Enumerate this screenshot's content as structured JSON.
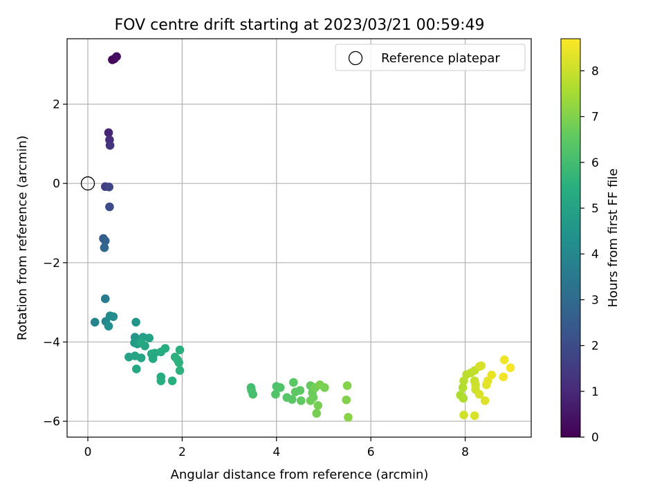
{
  "chart_data": {
    "type": "scatter",
    "title": "FOV centre drift starting at 2023/03/21 00:59:49",
    "xlabel": "Angular distance from reference (arcmin)",
    "ylabel": "Rotation from reference (arcmin)",
    "xlim": [
      -0.44,
      9.4
    ],
    "ylim": [
      -6.4,
      3.65
    ],
    "xticks": [
      0,
      2,
      4,
      6,
      8
    ],
    "xtick_labels": [
      "0",
      "2",
      "4",
      "6",
      "8"
    ],
    "yticks": [
      -6,
      -4,
      -2,
      0,
      2
    ],
    "ytick_labels": [
      "−6",
      "−4",
      "−2",
      "0",
      "2"
    ],
    "grid": true,
    "legend": {
      "placement": "top-right",
      "label": "Reference platepar"
    },
    "reference_point": {
      "x": 0,
      "y": 0
    },
    "colorbar": {
      "label": "Hours from first FF file",
      "range": [
        0,
        8.7
      ],
      "colormap": "viridis",
      "ticks": [
        0,
        1,
        2,
        3,
        4,
        5,
        6,
        7,
        8
      ],
      "tick_labels": [
        "0",
        "1",
        "2",
        "3",
        "4",
        "5",
        "6",
        "7",
        "8"
      ]
    },
    "points": [
      {
        "x": 0.52,
        "y": 3.12,
        "c": 0.05
      },
      {
        "x": 0.56,
        "y": 3.14,
        "c": 0.2
      },
      {
        "x": 0.61,
        "y": 3.2,
        "c": 0.35
      },
      {
        "x": 0.44,
        "y": 1.28,
        "c": 0.9
      },
      {
        "x": 0.46,
        "y": 1.1,
        "c": 1.1
      },
      {
        "x": 0.47,
        "y": 0.96,
        "c": 1.3
      },
      {
        "x": 0.37,
        "y": -0.08,
        "c": 1.6
      },
      {
        "x": 0.45,
        "y": -0.09,
        "c": 1.8
      },
      {
        "x": 0.46,
        "y": -0.59,
        "c": 2.0
      },
      {
        "x": 0.33,
        "y": -1.39,
        "c": 2.5
      },
      {
        "x": 0.37,
        "y": -1.45,
        "c": 2.7
      },
      {
        "x": 0.35,
        "y": -1.62,
        "c": 2.9
      },
      {
        "x": 0.37,
        "y": -2.91,
        "c": 3.6
      },
      {
        "x": 0.15,
        "y": -3.5,
        "c": 3.9
      },
      {
        "x": 0.38,
        "y": -3.48,
        "c": 4.0
      },
      {
        "x": 0.47,
        "y": -3.34,
        "c": 4.1
      },
      {
        "x": 0.54,
        "y": -3.36,
        "c": 4.2
      },
      {
        "x": 0.44,
        "y": -3.6,
        "c": 4.3
      },
      {
        "x": 1.02,
        "y": -3.5,
        "c": 4.5
      },
      {
        "x": 1.0,
        "y": -3.88,
        "c": 4.6
      },
      {
        "x": 0.99,
        "y": -4.02,
        "c": 4.7
      },
      {
        "x": 1.05,
        "y": -4.05,
        "c": 4.8
      },
      {
        "x": 1.17,
        "y": -3.88,
        "c": 4.9
      },
      {
        "x": 1.3,
        "y": -3.9,
        "c": 5.0
      },
      {
        "x": 1.21,
        "y": -4.1,
        "c": 5.1
      },
      {
        "x": 1.13,
        "y": -4.0,
        "c": 5.2
      },
      {
        "x": 1.35,
        "y": -4.3,
        "c": 5.25
      },
      {
        "x": 1.42,
        "y": -4.28,
        "c": 5.3
      },
      {
        "x": 1.55,
        "y": -4.25,
        "c": 5.35
      },
      {
        "x": 1.64,
        "y": -4.16,
        "c": 5.4
      },
      {
        "x": 1.95,
        "y": -4.2,
        "c": 5.45
      },
      {
        "x": 1.85,
        "y": -4.38,
        "c": 5.5
      },
      {
        "x": 1.9,
        "y": -4.45,
        "c": 5.5
      },
      {
        "x": 1.93,
        "y": -4.52,
        "c": 5.55
      },
      {
        "x": 1.95,
        "y": -4.72,
        "c": 5.55
      },
      {
        "x": 1.55,
        "y": -4.88,
        "c": 5.35
      },
      {
        "x": 1.55,
        "y": -4.98,
        "c": 5.4
      },
      {
        "x": 1.79,
        "y": -4.98,
        "c": 5.45
      },
      {
        "x": 0.87,
        "y": -4.38,
        "c": 5.0
      },
      {
        "x": 1.0,
        "y": -4.35,
        "c": 5.05
      },
      {
        "x": 1.13,
        "y": -4.4,
        "c": 5.1
      },
      {
        "x": 1.38,
        "y": -4.42,
        "c": 5.2
      },
      {
        "x": 1.03,
        "y": -4.68,
        "c": 5.15
      },
      {
        "x": 3.46,
        "y": -5.15,
        "c": 6.0
      },
      {
        "x": 3.47,
        "y": -5.22,
        "c": 6.05
      },
      {
        "x": 3.5,
        "y": -5.32,
        "c": 6.1
      },
      {
        "x": 4.0,
        "y": -5.12,
        "c": 6.2
      },
      {
        "x": 4.08,
        "y": -5.15,
        "c": 6.25
      },
      {
        "x": 3.98,
        "y": -5.32,
        "c": 6.3
      },
      {
        "x": 4.22,
        "y": -5.4,
        "c": 6.35
      },
      {
        "x": 4.33,
        "y": -5.45,
        "c": 6.4
      },
      {
        "x": 4.36,
        "y": -5.02,
        "c": 6.45
      },
      {
        "x": 4.4,
        "y": -5.26,
        "c": 6.5
      },
      {
        "x": 4.5,
        "y": -5.22,
        "c": 6.5
      },
      {
        "x": 4.52,
        "y": -5.48,
        "c": 6.55
      },
      {
        "x": 4.72,
        "y": -5.1,
        "c": 6.6
      },
      {
        "x": 4.76,
        "y": -5.28,
        "c": 6.65
      },
      {
        "x": 4.78,
        "y": -5.4,
        "c": 6.7
      },
      {
        "x": 4.72,
        "y": -5.48,
        "c": 6.75
      },
      {
        "x": 4.82,
        "y": -5.15,
        "c": 6.8
      },
      {
        "x": 4.88,
        "y": -5.6,
        "c": 6.85
      },
      {
        "x": 4.85,
        "y": -5.8,
        "c": 6.85
      },
      {
        "x": 4.92,
        "y": -5.08,
        "c": 6.9
      },
      {
        "x": 5.02,
        "y": -5.15,
        "c": 6.9
      },
      {
        "x": 5.48,
        "y": -5.46,
        "c": 7.0
      },
      {
        "x": 5.5,
        "y": -5.1,
        "c": 7.05
      },
      {
        "x": 5.52,
        "y": -5.9,
        "c": 7.1
      },
      {
        "x": 7.9,
        "y": -5.34,
        "c": 7.6
      },
      {
        "x": 7.96,
        "y": -5.42,
        "c": 7.65
      },
      {
        "x": 7.95,
        "y": -5.15,
        "c": 7.7
      },
      {
        "x": 7.97,
        "y": -4.98,
        "c": 7.75
      },
      {
        "x": 8.03,
        "y": -4.82,
        "c": 7.8
      },
      {
        "x": 8.12,
        "y": -4.78,
        "c": 7.85
      },
      {
        "x": 8.2,
        "y": -4.72,
        "c": 7.9
      },
      {
        "x": 8.2,
        "y": -4.98,
        "c": 7.95
      },
      {
        "x": 8.22,
        "y": -5.08,
        "c": 8.0
      },
      {
        "x": 8.22,
        "y": -5.2,
        "c": 8.05
      },
      {
        "x": 8.3,
        "y": -4.62,
        "c": 8.1
      },
      {
        "x": 8.34,
        "y": -4.6,
        "c": 8.15
      },
      {
        "x": 8.3,
        "y": -5.32,
        "c": 8.2
      },
      {
        "x": 8.42,
        "y": -5.48,
        "c": 8.25
      },
      {
        "x": 8.45,
        "y": -5.08,
        "c": 8.3
      },
      {
        "x": 8.48,
        "y": -4.98,
        "c": 8.35
      },
      {
        "x": 8.56,
        "y": -4.83,
        "c": 8.4
      },
      {
        "x": 8.83,
        "y": -4.45,
        "c": 8.5
      },
      {
        "x": 8.81,
        "y": -4.88,
        "c": 8.55
      },
      {
        "x": 8.96,
        "y": -4.65,
        "c": 8.6
      },
      {
        "x": 7.97,
        "y": -5.84,
        "c": 8.1
      },
      {
        "x": 8.2,
        "y": -5.86,
        "c": 8.2
      }
    ]
  }
}
